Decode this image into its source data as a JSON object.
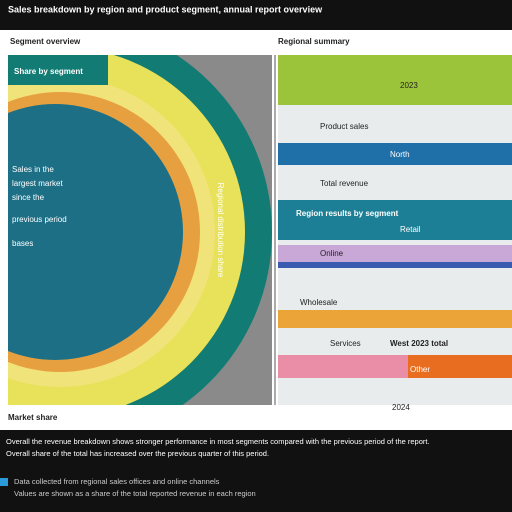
{
  "header": {
    "title": "Sales breakdown by region and product segment, annual report overview"
  },
  "left_panel": {
    "label": "Segment overview",
    "heading": "Share by segment",
    "notes": [
      "Sales in the",
      "largest market",
      "since the",
      "previous period",
      "bases"
    ],
    "arc_label": "Regional distribution share",
    "footer": "Market share"
  },
  "right_panel": {
    "label": "Regional summary",
    "rows": [
      "2023",
      "Product sales",
      "North",
      "Total revenue",
      "Region results by segment",
      "Retail",
      "Online",
      "Wholesale",
      "Services",
      "West 2023 total",
      "Other"
    ],
    "footer": "2024"
  },
  "footer": {
    "lines": [
      "Overall the revenue breakdown shows stronger performance in most segments compared with the previous period of the report.",
      "Overall share of the total has increased over the previous quarter of this period."
    ],
    "notes": [
      "Data collected from regional sales offices and online channels",
      "Values are shown as a share of the total reported revenue in each region"
    ]
  }
}
